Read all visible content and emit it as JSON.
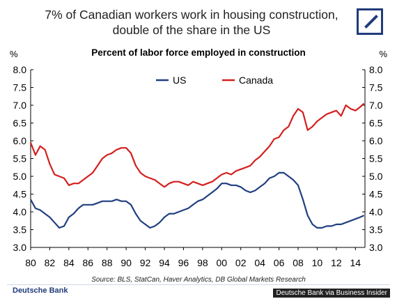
{
  "headline": "7% of Canadian workers work in housing construction, double of the share in the US",
  "logo_color": "#1f3b7a",
  "footer": {
    "source": "Source: BLS, StatCan, Haver Analytics, DB Global Markets Research",
    "bank": "Deutsche Bank",
    "credit": "Deutsche Bank via Business Insider"
  },
  "chart_data": {
    "type": "line",
    "title": "Percent of labor force employed in construction",
    "ylabel_left": "%",
    "ylabel_right": "%",
    "ylim": [
      3.0,
      8.0
    ],
    "yticks": [
      "3.0",
      "3.5",
      "4.0",
      "4.5",
      "5.0",
      "5.5",
      "6.0",
      "6.5",
      "7.0",
      "7.5",
      "8.0"
    ],
    "xlim": [
      1980,
      2015
    ],
    "xticks": [
      "80",
      "82",
      "84",
      "86",
      "88",
      "90",
      "92",
      "94",
      "96",
      "98",
      "00",
      "02",
      "04",
      "06",
      "08",
      "10",
      "12",
      "14"
    ],
    "legend_position": "top-center",
    "grid": false,
    "series": [
      {
        "name": "US",
        "color": "#1f3f7f",
        "x": [
          1980,
          1980.5,
          1981,
          1981.5,
          1982,
          1982.5,
          1983,
          1983.5,
          1984,
          1984.5,
          1985,
          1985.5,
          1986,
          1986.5,
          1987,
          1987.5,
          1988,
          1988.5,
          1989,
          1989.5,
          1990,
          1990.5,
          1991,
          1991.5,
          1992,
          1992.5,
          1993,
          1993.5,
          1994,
          1994.5,
          1995,
          1995.5,
          1996,
          1996.5,
          1997,
          1997.5,
          1998,
          1998.5,
          1999,
          1999.5,
          2000,
          2000.5,
          2001,
          2001.5,
          2002,
          2002.5,
          2003,
          2003.5,
          2004,
          2004.5,
          2005,
          2005.5,
          2006,
          2006.5,
          2007,
          2007.5,
          2008,
          2008.5,
          2009,
          2009.5,
          2010,
          2010.5,
          2011,
          2011.5,
          2012,
          2012.5,
          2013,
          2013.5,
          2014,
          2014.5,
          2014.9
        ],
        "values": [
          4.35,
          4.1,
          4.05,
          3.95,
          3.85,
          3.7,
          3.55,
          3.6,
          3.85,
          3.95,
          4.1,
          4.2,
          4.2,
          4.2,
          4.25,
          4.3,
          4.3,
          4.3,
          4.35,
          4.3,
          4.3,
          4.2,
          3.95,
          3.75,
          3.65,
          3.55,
          3.6,
          3.7,
          3.85,
          3.95,
          3.95,
          4.0,
          4.05,
          4.1,
          4.2,
          4.3,
          4.35,
          4.45,
          4.55,
          4.65,
          4.8,
          4.8,
          4.75,
          4.75,
          4.7,
          4.6,
          4.55,
          4.6,
          4.7,
          4.8,
          4.95,
          5.0,
          5.1,
          5.1,
          5.0,
          4.9,
          4.75,
          4.35,
          3.9,
          3.65,
          3.55,
          3.55,
          3.6,
          3.6,
          3.65,
          3.65,
          3.7,
          3.75,
          3.8,
          3.85,
          3.9
        ]
      },
      {
        "name": "Canada",
        "color": "#d41f1f",
        "x": [
          1980,
          1980.5,
          1981,
          1981.5,
          1982,
          1982.5,
          1983,
          1983.5,
          1984,
          1984.5,
          1985,
          1985.5,
          1986,
          1986.5,
          1987,
          1987.5,
          1988,
          1988.5,
          1989,
          1989.5,
          1990,
          1990.5,
          1991,
          1991.5,
          1992,
          1992.5,
          1993,
          1993.5,
          1994,
          1994.5,
          1995,
          1995.5,
          1996,
          1996.5,
          1997,
          1997.5,
          1998,
          1998.5,
          1999,
          1999.5,
          2000,
          2000.5,
          2001,
          2001.5,
          2002,
          2002.5,
          2003,
          2003.5,
          2004,
          2004.5,
          2005,
          2005.5,
          2006,
          2006.5,
          2007,
          2007.5,
          2008,
          2008.5,
          2009,
          2009.5,
          2010,
          2010.5,
          2011,
          2011.5,
          2012,
          2012.5,
          2013,
          2013.5,
          2014,
          2014.5,
          2014.9
        ],
        "values": [
          5.95,
          5.6,
          5.85,
          5.75,
          5.35,
          5.05,
          5.0,
          4.95,
          4.75,
          4.8,
          4.8,
          4.9,
          5.0,
          5.1,
          5.3,
          5.5,
          5.6,
          5.65,
          5.75,
          5.8,
          5.8,
          5.65,
          5.3,
          5.1,
          5.0,
          4.95,
          4.9,
          4.8,
          4.7,
          4.8,
          4.85,
          4.85,
          4.8,
          4.75,
          4.85,
          4.8,
          4.75,
          4.8,
          4.85,
          4.95,
          5.05,
          5.1,
          5.05,
          5.15,
          5.2,
          5.25,
          5.3,
          5.45,
          5.55,
          5.7,
          5.85,
          6.05,
          6.1,
          6.3,
          6.4,
          6.7,
          6.9,
          6.8,
          6.3,
          6.4,
          6.55,
          6.65,
          6.75,
          6.8,
          6.85,
          6.7,
          7.0,
          6.9,
          6.85,
          6.95,
          7.05
        ]
      }
    ]
  }
}
